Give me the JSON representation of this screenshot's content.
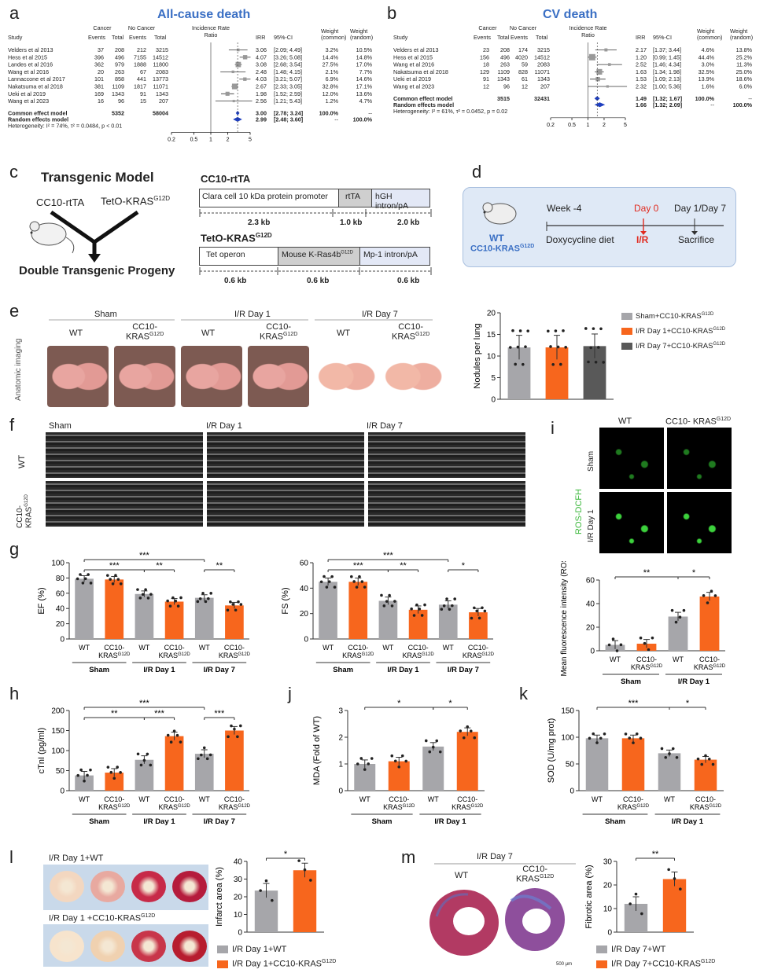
{
  "panels": {
    "a": "a",
    "b": "b",
    "c": "c",
    "d": "d",
    "e": "e",
    "f": "f",
    "g": "g",
    "h": "h",
    "i": "i",
    "j": "j",
    "k": "k",
    "l": "l",
    "m": "m"
  },
  "forest_a": {
    "title": "All-cause death",
    "hdr": {
      "study": "Study",
      "cancer": "Cancer",
      "nocancer": "No Cancer",
      "events": "Events",
      "total": "Total",
      "irr_head": "Incidence Rate",
      "ratio": "Ratio",
      "irr": "IRR",
      "ci": "95%-CI",
      "wc": "Weight",
      "wc2": "(common)",
      "wr": "Weight",
      "wr2": "(random)"
    },
    "rows": [
      {
        "study": "Velders et al 2013",
        "e1": "37",
        "t1": "208",
        "e2": "212",
        "t2": "3215",
        "irr": "3.06",
        "ci": "[2.09; 4.49]",
        "wc": "3.2%",
        "wr": "10.5%",
        "v": 3.06,
        "lo": 2.09,
        "hi": 4.49,
        "w": 3.2
      },
      {
        "study": "Hess et al 2015",
        "e1": "396",
        "t1": "496",
        "e2": "7155",
        "t2": "14512",
        "irr": "4.07",
        "ci": "[3.26; 5.08]",
        "wc": "14.4%",
        "wr": "14.8%",
        "v": 4.07,
        "lo": 3.26,
        "hi": 5.08,
        "w": 14.4
      },
      {
        "study": "Landes et al 2016",
        "e1": "362",
        "t1": "979",
        "e2": "1888",
        "t2": "11800",
        "irr": "3.08",
        "ci": "[2.68; 3.54]",
        "wc": "27.5%",
        "wr": "17.0%",
        "v": 3.08,
        "lo": 2.68,
        "hi": 3.54,
        "w": 27.5
      },
      {
        "study": "Wang et al 2016",
        "e1": "20",
        "t1": "263",
        "e2": "67",
        "t2": "2083",
        "irr": "2.48",
        "ci": "[1.48; 4.15]",
        "wc": "2.1%",
        "wr": "7.7%",
        "v": 2.48,
        "lo": 1.48,
        "hi": 4.15,
        "w": 2.1
      },
      {
        "study": "Lannaccone et al 2017",
        "e1": "101",
        "t1": "858",
        "e2": "441",
        "t2": "13773",
        "irr": "4.03",
        "ci": "[3.21; 5.07]",
        "wc": "6.9%",
        "wr": "14.6%",
        "v": 4.03,
        "lo": 3.21,
        "hi": 5.07,
        "w": 6.9
      },
      {
        "study": "Nakatsuma et al 2018",
        "e1": "381",
        "t1": "1109",
        "e2": "1817",
        "t2": "11071",
        "irr": "2.67",
        "ci": "[2.33; 3.05]",
        "wc": "32.8%",
        "wr": "17.1%",
        "v": 2.67,
        "lo": 2.33,
        "hi": 3.05,
        "w": 32.8
      },
      {
        "study": "Ueki et al 2019",
        "e1": "169",
        "t1": "1343",
        "e2": "91",
        "t2": "1343",
        "irr": "1.98",
        "ci": "[1.52; 2.59]",
        "wc": "12.0%",
        "wr": "13.6%",
        "v": 1.98,
        "lo": 1.52,
        "hi": 2.59,
        "w": 12.0
      },
      {
        "study": "Wang et al 2023",
        "e1": "16",
        "t1": "96",
        "e2": "15",
        "t2": "207",
        "irr": "2.56",
        "ci": "[1.21; 5.43]",
        "wc": "1.2%",
        "wr": "4.7%",
        "v": 2.56,
        "lo": 1.21,
        "hi": 5.43,
        "w": 1.2
      }
    ],
    "common": {
      "label": "Common effect model",
      "t1": "5352",
      "t2": "58004",
      "irr": "3.00",
      "ci": "[2.78; 3.24]",
      "wc": "100.0%",
      "wr": "--",
      "v": 3.0,
      "lo": 2.78,
      "hi": 3.24
    },
    "random": {
      "label": "Random effects model",
      "irr": "2.99",
      "ci": "[2.48; 3.60]",
      "wc": "--",
      "wr": "100.0%",
      "v": 2.99,
      "lo": 2.48,
      "hi": 3.6
    },
    "het": "Heterogeneity: I² = 74%, τ² = 0.0484, p < 0.01",
    "ticks": [
      "0.2",
      "0.5",
      "1",
      "2",
      "5"
    ]
  },
  "forest_b": {
    "title": "CV death",
    "rows": [
      {
        "study": "Velders et al 2013",
        "e1": "23",
        "t1": "208",
        "e2": "174",
        "t2": "3215",
        "irr": "2.17",
        "ci": "[1.37; 3.44]",
        "wc": "4.6%",
        "wr": "13.8%",
        "v": 2.17,
        "lo": 1.37,
        "hi": 3.44,
        "w": 4.6
      },
      {
        "study": "Hess et al 2015",
        "e1": "156",
        "t1": "496",
        "e2": "4020",
        "t2": "14512",
        "irr": "1.20",
        "ci": "[0.99; 1.45]",
        "wc": "44.4%",
        "wr": "25.2%",
        "v": 1.2,
        "lo": 0.99,
        "hi": 1.45,
        "w": 44.4
      },
      {
        "study": "Wang et al 2016",
        "e1": "18",
        "t1": "263",
        "e2": "59",
        "t2": "2083",
        "irr": "2.52",
        "ci": "[1.46; 4.34]",
        "wc": "3.0%",
        "wr": "11.3%",
        "v": 2.52,
        "lo": 1.46,
        "hi": 4.34,
        "w": 3.0
      },
      {
        "study": "Nakatsuma et al 2018",
        "e1": "129",
        "t1": "1109",
        "e2": "828",
        "t2": "11071",
        "irr": "1.63",
        "ci": "[1.34; 1.98]",
        "wc": "32.5%",
        "wr": "25.0%",
        "v": 1.63,
        "lo": 1.34,
        "hi": 1.98,
        "w": 32.5
      },
      {
        "study": "Ueki et al 2019",
        "e1": "91",
        "t1": "1343",
        "e2": "61",
        "t2": "1343",
        "irr": "1.53",
        "ci": "[1.09; 2.13]",
        "wc": "13.9%",
        "wr": "18.6%",
        "v": 1.53,
        "lo": 1.09,
        "hi": 2.13,
        "w": 13.9
      },
      {
        "study": "Wang et al 2023",
        "e1": "12",
        "t1": "96",
        "e2": "12",
        "t2": "207",
        "irr": "2.32",
        "ci": "[1.00; 5.36]",
        "wc": "1.6%",
        "wr": "6.0%",
        "v": 2.32,
        "lo": 1.0,
        "hi": 5.36,
        "w": 1.6
      }
    ],
    "common": {
      "label": "Common effect model",
      "t1": "3515",
      "t2": "32431",
      "irr": "1.49",
      "ci": "[1.32; 1.67]",
      "wc": "100.0%",
      "wr": "--",
      "v": 1.49,
      "lo": 1.32,
      "hi": 1.67
    },
    "random": {
      "label": "Random effects model",
      "irr": "1.66",
      "ci": "[1.32; 2.09]",
      "wc": "--",
      "wr": "100.0%",
      "v": 1.66,
      "lo": 1.32,
      "hi": 2.09
    },
    "het": "Heterogeneity: I² = 61%, τ² = 0.0452, p = 0.02",
    "ticks": [
      "0.2",
      "0.5",
      "1",
      "2",
      "5"
    ]
  },
  "c": {
    "title": "Transgenic  Model",
    "cc10": "CC10-rtTA",
    "teto": "TetO-KRAS",
    "sup": "G12D",
    "progeny": "Double Transgenic  Progeny",
    "c1_title": "CC10-rtTA",
    "c1_seg": [
      "Clara cell 10 kDa protein promoter",
      "rtTA",
      "hGH intron/pA"
    ],
    "c1_len": [
      "2.3 kb",
      "1.0 kb",
      "2.0 kb"
    ],
    "c2_title": "TetO-KRAS",
    "c2_seg": [
      "Tet operon",
      "Mouse K-Ras4b",
      "Mp-1 intron/pA"
    ],
    "c2_len": [
      "0.6 kb",
      "0.6 kb",
      "0.6 kb"
    ]
  },
  "d": {
    "wt": "WT",
    "cc": "CC10-KRAS",
    "week": "Week -4",
    "day0": "Day 0",
    "day17": "Day 1/Day 7",
    "dox": "Doxycycline diet",
    "ir": "I/R",
    "sac": "Sacrifice"
  },
  "e": {
    "sham": "Sham",
    "ir1": "I/R Day 1",
    "ir7": "I/R Day 7",
    "wt": "WT",
    "cc": "CC10-",
    "kras": "KRAS",
    "side": "Anatomic\nimaging",
    "legend": [
      "Sham+CC10-KRAS",
      "I/R Day 1+CC10-KRAS",
      "I/R Day 7+CC10-KRAS"
    ]
  },
  "f": {
    "sham": "Sham",
    "ir1": "I/R Day 1",
    "ir7": "I/R Day 7",
    "wt": "WT",
    "cc": "CC10-\nKRAS"
  },
  "i": {
    "wt": "WT",
    "cc": "CC10- KRAS",
    "sham": "Sham",
    "ir1": "I/R Day 1",
    "ros": "ROS-DCFH"
  },
  "l": {
    "top": "I/R Day 1+WT",
    "bot": "I/R Day 1 +CC10-KRAS",
    "leg": [
      "I/R Day 1+WT",
      "I/R Day 1+CC10-KRAS"
    ]
  },
  "m": {
    "ir7": "I/R Day 7",
    "wt": "WT",
    "cc": "CC10-",
    "kras": "KRAS",
    "scale": "500 μm",
    "leg": [
      "I/R Day 7+WT",
      "I/R Day 7+CC10-KRAS"
    ]
  },
  "colors": {
    "gray": "#a6a6aa",
    "orange": "#f7661d",
    "dark": "#595959",
    "blue": "#3a6fc4",
    "red": "#e02b20"
  },
  "chart_data": [
    {
      "id": "e",
      "type": "bar",
      "ylabel": "Nodules per lung",
      "ylim": [
        0,
        20
      ],
      "yticks": [
        0,
        5,
        10,
        15,
        20
      ],
      "categories": [
        "Sham+CC10-KRAS",
        "I/R Day 1+CC10-KRAS",
        "I/R Day 7+CC10-KRAS"
      ],
      "values": [
        12,
        12,
        12.3
      ]
    },
    {
      "id": "g1",
      "type": "bar",
      "ylabel": "EF (%)",
      "ylim": [
        0,
        100
      ],
      "yticks": [
        0,
        20,
        40,
        60,
        80,
        100
      ],
      "groups": [
        "Sham",
        "I/R Day 1",
        "I/R Day 7"
      ],
      "categories": [
        "WT",
        "CC10-KRAS",
        "WT",
        "CC10-KRAS",
        "WT",
        "CC10-KRAS"
      ],
      "values": [
        79,
        78,
        59,
        49,
        54,
        44
      ],
      "sig": [
        "***",
        "***",
        "**",
        "**"
      ]
    },
    {
      "id": "g2",
      "type": "bar",
      "ylabel": "FS (%)",
      "ylim": [
        0,
        60
      ],
      "yticks": [
        0,
        20,
        40,
        60
      ],
      "groups": [
        "Sham",
        "I/R Day 1",
        "I/R Day 7"
      ],
      "categories": [
        "WT",
        "CC10-KRAS",
        "WT",
        "CC10-KRAS",
        "WT",
        "CC10-KRAS"
      ],
      "values": [
        45,
        45,
        30,
        23,
        27,
        21
      ],
      "sig": [
        "***",
        "***",
        "**",
        "*"
      ]
    },
    {
      "id": "h",
      "type": "bar",
      "ylabel": "cTnI (pg/ml)",
      "ylim": [
        0,
        200
      ],
      "yticks": [
        0,
        50,
        100,
        150,
        200
      ],
      "groups": [
        "Sham",
        "I/R Day 1",
        "I/R Day 7"
      ],
      "categories": [
        "WT",
        "CC10-KRAS",
        "WT",
        "CC10-KRAS",
        "WT",
        "CC10-KRAS"
      ],
      "values": [
        38,
        45,
        77,
        136,
        92,
        150
      ],
      "sig": [
        "***",
        "**",
        "***",
        "***"
      ]
    },
    {
      "id": "i",
      "type": "bar",
      "ylabel": "Mean fluorescence intensity (ROS)",
      "ylim": [
        0,
        60
      ],
      "yticks": [
        0,
        20,
        40,
        60
      ],
      "groups": [
        "Sham",
        "I/R Day 1"
      ],
      "categories": [
        "WT",
        "CC10-KRAS",
        "WT",
        "CC10-KRAS"
      ],
      "values": [
        5,
        6,
        29,
        46
      ],
      "sig": [
        "**",
        "*"
      ]
    },
    {
      "id": "j",
      "type": "bar",
      "ylabel": "MDA (Fold of WT)",
      "ylim": [
        0,
        3
      ],
      "yticks": [
        0,
        1,
        2,
        3
      ],
      "groups": [
        "Sham",
        "I/R Day 1"
      ],
      "categories": [
        "WT",
        "CC10-KRAS",
        "WT",
        "CC10-KRAS"
      ],
      "values": [
        1.0,
        1.1,
        1.65,
        2.2
      ],
      "sig": [
        "*",
        "*"
      ]
    },
    {
      "id": "k",
      "type": "bar",
      "ylabel": "SOD (U/mg prot)",
      "ylim": [
        0,
        150
      ],
      "yticks": [
        0,
        50,
        100,
        150
      ],
      "groups": [
        "Sham",
        "I/R Day 1"
      ],
      "categories": [
        "WT",
        "CC10-KRAS",
        "WT",
        "CC10-KRAS"
      ],
      "values": [
        98,
        98,
        70,
        58
      ],
      "sig": [
        "***",
        "*"
      ]
    },
    {
      "id": "l",
      "type": "bar",
      "ylabel": "Infarct area (%)",
      "ylim": [
        0,
        40
      ],
      "yticks": [
        0,
        10,
        20,
        30,
        40
      ],
      "categories": [
        "I/R Day 1+WT",
        "I/R Day 1+CC10-KRAS"
      ],
      "values": [
        23.5,
        35
      ],
      "sig": [
        "*"
      ]
    },
    {
      "id": "m",
      "type": "bar",
      "ylabel": "Fibrotic area (%)",
      "ylim": [
        0,
        30
      ],
      "yticks": [
        0,
        10,
        20,
        30
      ],
      "categories": [
        "I/R Day 7+WT",
        "I/R Day 7+CC10-KRAS"
      ],
      "values": [
        12,
        22.5
      ],
      "sig": [
        "**"
      ]
    }
  ]
}
